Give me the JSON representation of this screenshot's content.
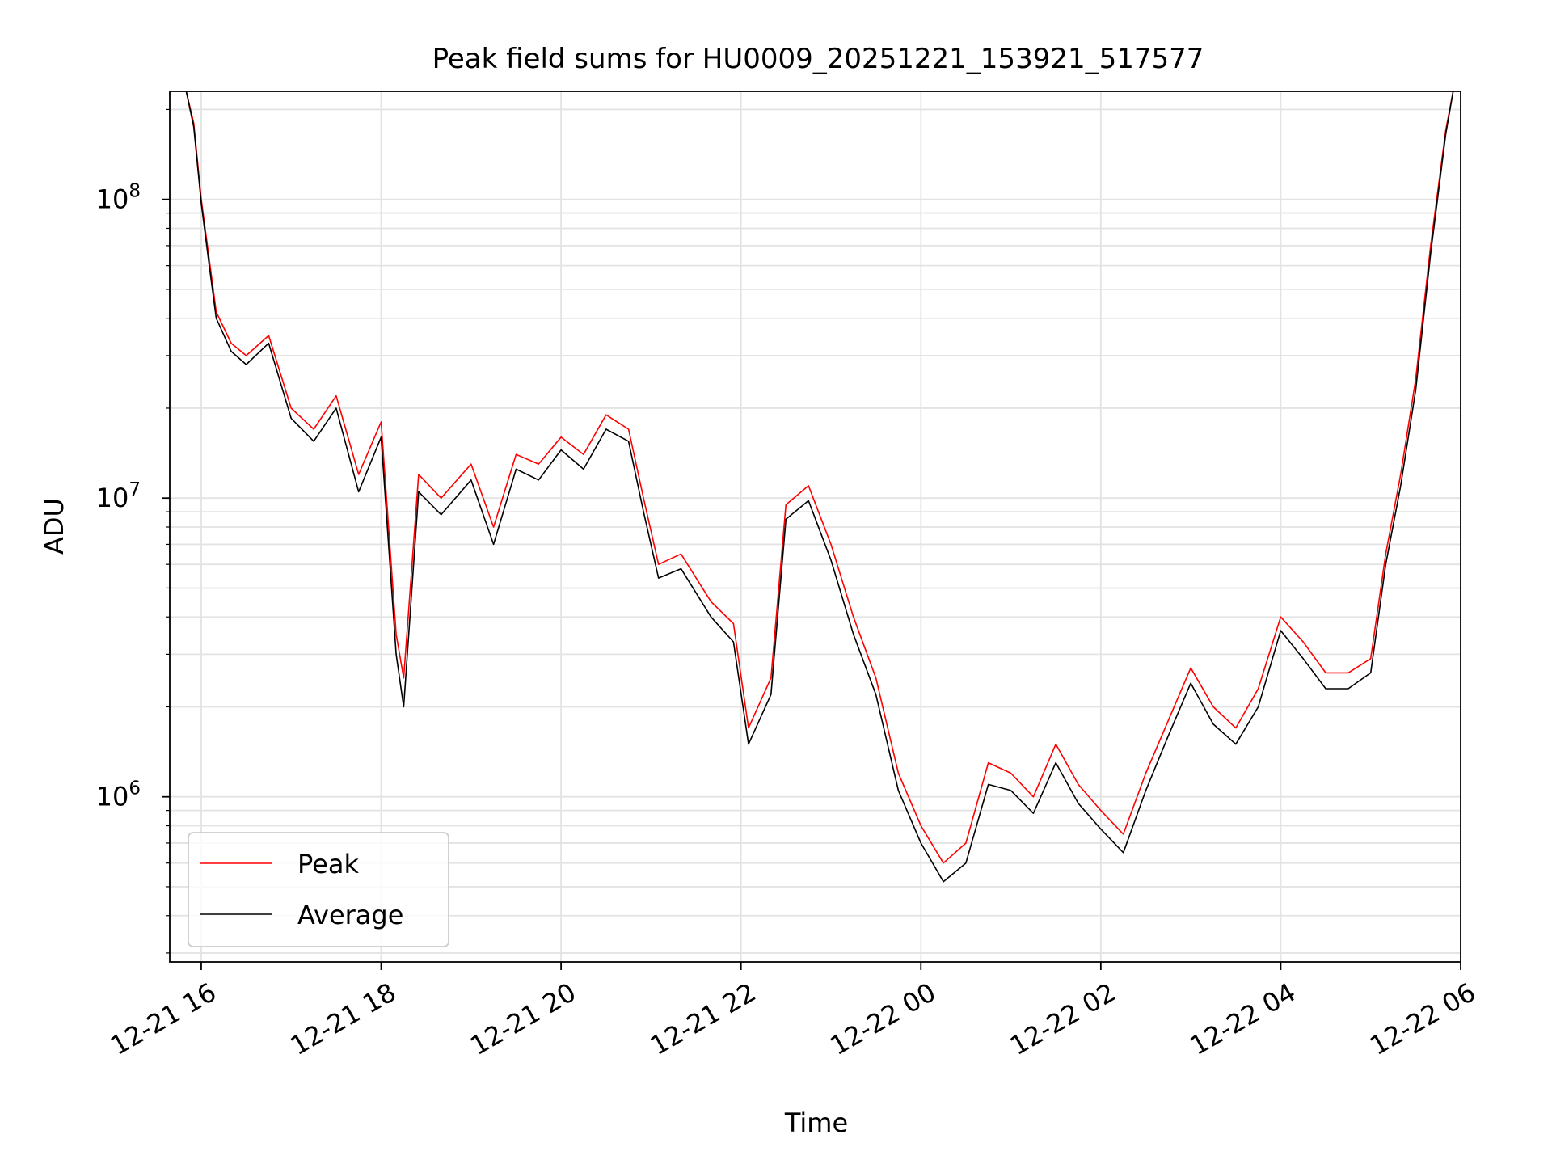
{
  "chart_data": {
    "type": "line",
    "title": "Peak field sums for HU0009_20251221_153921_517577",
    "xlabel": "Time",
    "ylabel": "ADU",
    "x_tick_labels": [
      "12-21 16",
      "12-21 18",
      "12-21 20",
      "12-21 22",
      "12-22 00",
      "12-22 02",
      "12-22 04",
      "12-22 06"
    ],
    "x_tick_values": [
      "2025-12-21 16:00",
      "2025-12-21 18:00",
      "2025-12-21 20:00",
      "2025-12-21 22:00",
      "2025-12-22 00:00",
      "2025-12-22 02:00",
      "2025-12-22 04:00",
      "2025-12-22 06:00"
    ],
    "xlim": [
      "2025-12-21 15:39",
      "2025-12-22 06:00"
    ],
    "y_scale": "log",
    "ylim": [
      280000,
      230000000
    ],
    "y_tick_labels": [
      {
        "base": "10",
        "exp": "6",
        "value": 1000000
      },
      {
        "base": "10",
        "exp": "7",
        "value": 10000000
      },
      {
        "base": "10",
        "exp": "8",
        "value": 100000000
      }
    ],
    "grid": true,
    "legend_position": "lower left",
    "series": [
      {
        "name": "Peak",
        "color": "#ff0000",
        "points": [
          [
            "2025-12-21 15:50",
            230000000
          ],
          [
            "2025-12-21 15:55",
            180000000
          ],
          [
            "2025-12-21 16:00",
            100000000
          ],
          [
            "2025-12-21 16:05",
            65000000
          ],
          [
            "2025-12-21 16:10",
            42000000
          ],
          [
            "2025-12-21 16:20",
            33000000
          ],
          [
            "2025-12-21 16:30",
            30000000
          ],
          [
            "2025-12-21 16:45",
            35000000
          ],
          [
            "2025-12-21 17:00",
            20000000
          ],
          [
            "2025-12-21 17:15",
            17000000
          ],
          [
            "2025-12-21 17:30",
            22000000
          ],
          [
            "2025-12-21 17:45",
            12000000
          ],
          [
            "2025-12-21 18:00",
            18000000
          ],
          [
            "2025-12-21 18:10",
            3500000
          ],
          [
            "2025-12-21 18:15",
            2500000
          ],
          [
            "2025-12-21 18:25",
            12000000
          ],
          [
            "2025-12-21 18:40",
            10000000
          ],
          [
            "2025-12-21 19:00",
            13000000
          ],
          [
            "2025-12-21 19:15",
            8000000
          ],
          [
            "2025-12-21 19:30",
            14000000
          ],
          [
            "2025-12-21 19:45",
            13000000
          ],
          [
            "2025-12-21 20:00",
            16000000
          ],
          [
            "2025-12-21 20:15",
            14000000
          ],
          [
            "2025-12-21 20:30",
            19000000
          ],
          [
            "2025-12-21 20:45",
            17000000
          ],
          [
            "2025-12-21 20:55",
            10000000
          ],
          [
            "2025-12-21 21:05",
            6000000
          ],
          [
            "2025-12-21 21:20",
            6500000
          ],
          [
            "2025-12-21 21:40",
            4500000
          ],
          [
            "2025-12-21 21:55",
            3800000
          ],
          [
            "2025-12-21 22:05",
            1700000
          ],
          [
            "2025-12-21 22:20",
            2500000
          ],
          [
            "2025-12-21 22:30",
            9500000
          ],
          [
            "2025-12-21 22:45",
            11000000
          ],
          [
            "2025-12-21 23:00",
            7000000
          ],
          [
            "2025-12-21 23:15",
            4000000
          ],
          [
            "2025-12-21 23:30",
            2500000
          ],
          [
            "2025-12-21 23:45",
            1200000
          ],
          [
            "2025-12-22 00:00",
            800000
          ],
          [
            "2025-12-22 00:15",
            600000
          ],
          [
            "2025-12-22 00:30",
            700000
          ],
          [
            "2025-12-22 00:45",
            1300000
          ],
          [
            "2025-12-22 01:00",
            1200000
          ],
          [
            "2025-12-22 01:15",
            1000000
          ],
          [
            "2025-12-22 01:30",
            1500000
          ],
          [
            "2025-12-22 01:45",
            1100000
          ],
          [
            "2025-12-22 02:00",
            900000
          ],
          [
            "2025-12-22 02:15",
            750000
          ],
          [
            "2025-12-22 02:30",
            1200000
          ],
          [
            "2025-12-22 02:45",
            1800000
          ],
          [
            "2025-12-22 03:00",
            2700000
          ],
          [
            "2025-12-22 03:15",
            2000000
          ],
          [
            "2025-12-22 03:30",
            1700000
          ],
          [
            "2025-12-22 03:45",
            2300000
          ],
          [
            "2025-12-22 04:00",
            4000000
          ],
          [
            "2025-12-22 04:15",
            3300000
          ],
          [
            "2025-12-22 04:30",
            2600000
          ],
          [
            "2025-12-22 04:45",
            2600000
          ],
          [
            "2025-12-22 05:00",
            2900000
          ],
          [
            "2025-12-22 05:10",
            6500000
          ],
          [
            "2025-12-22 05:20",
            12000000
          ],
          [
            "2025-12-22 05:30",
            25000000
          ],
          [
            "2025-12-22 05:40",
            70000000
          ],
          [
            "2025-12-22 05:50",
            170000000
          ],
          [
            "2025-12-22 05:55",
            230000000
          ]
        ]
      },
      {
        "name": "Average",
        "color": "#000000",
        "points": [
          [
            "2025-12-21 15:50",
            230000000
          ],
          [
            "2025-12-21 15:55",
            175000000
          ],
          [
            "2025-12-21 16:00",
            97000000
          ],
          [
            "2025-12-21 16:05",
            62000000
          ],
          [
            "2025-12-21 16:10",
            40000000
          ],
          [
            "2025-12-21 16:20",
            31000000
          ],
          [
            "2025-12-21 16:30",
            28000000
          ],
          [
            "2025-12-21 16:45",
            33000000
          ],
          [
            "2025-12-21 17:00",
            18500000
          ],
          [
            "2025-12-21 17:15",
            15500000
          ],
          [
            "2025-12-21 17:30",
            20000000
          ],
          [
            "2025-12-21 17:45",
            10500000
          ],
          [
            "2025-12-21 18:00",
            16000000
          ],
          [
            "2025-12-21 18:10",
            3000000
          ],
          [
            "2025-12-21 18:15",
            2000000
          ],
          [
            "2025-12-21 18:25",
            10500000
          ],
          [
            "2025-12-21 18:40",
            8800000
          ],
          [
            "2025-12-21 19:00",
            11500000
          ],
          [
            "2025-12-21 19:15",
            7000000
          ],
          [
            "2025-12-21 19:30",
            12500000
          ],
          [
            "2025-12-21 19:45",
            11500000
          ],
          [
            "2025-12-21 20:00",
            14500000
          ],
          [
            "2025-12-21 20:15",
            12500000
          ],
          [
            "2025-12-21 20:30",
            17000000
          ],
          [
            "2025-12-21 20:45",
            15500000
          ],
          [
            "2025-12-21 20:55",
            9000000
          ],
          [
            "2025-12-21 21:05",
            5400000
          ],
          [
            "2025-12-21 21:20",
            5800000
          ],
          [
            "2025-12-21 21:40",
            4000000
          ],
          [
            "2025-12-21 21:55",
            3300000
          ],
          [
            "2025-12-21 22:05",
            1500000
          ],
          [
            "2025-12-21 22:20",
            2200000
          ],
          [
            "2025-12-21 22:30",
            8500000
          ],
          [
            "2025-12-21 22:45",
            9800000
          ],
          [
            "2025-12-21 23:00",
            6200000
          ],
          [
            "2025-12-21 23:15",
            3500000
          ],
          [
            "2025-12-21 23:30",
            2200000
          ],
          [
            "2025-12-21 23:45",
            1050000
          ],
          [
            "2025-12-22 00:00",
            700000
          ],
          [
            "2025-12-22 00:15",
            520000
          ],
          [
            "2025-12-22 00:30",
            600000
          ],
          [
            "2025-12-22 00:45",
            1100000
          ],
          [
            "2025-12-22 01:00",
            1050000
          ],
          [
            "2025-12-22 01:15",
            880000
          ],
          [
            "2025-12-22 01:30",
            1300000
          ],
          [
            "2025-12-22 01:45",
            950000
          ],
          [
            "2025-12-22 02:00",
            780000
          ],
          [
            "2025-12-22 02:15",
            650000
          ],
          [
            "2025-12-22 02:30",
            1050000
          ],
          [
            "2025-12-22 02:45",
            1600000
          ],
          [
            "2025-12-22 03:00",
            2400000
          ],
          [
            "2025-12-22 03:15",
            1750000
          ],
          [
            "2025-12-22 03:30",
            1500000
          ],
          [
            "2025-12-22 03:45",
            2000000
          ],
          [
            "2025-12-22 04:00",
            3600000
          ],
          [
            "2025-12-22 04:15",
            2900000
          ],
          [
            "2025-12-22 04:30",
            2300000
          ],
          [
            "2025-12-22 04:45",
            2300000
          ],
          [
            "2025-12-22 05:00",
            2600000
          ],
          [
            "2025-12-22 05:10",
            6000000
          ],
          [
            "2025-12-22 05:20",
            11000000
          ],
          [
            "2025-12-22 05:30",
            23000000
          ],
          [
            "2025-12-22 05:40",
            66000000
          ],
          [
            "2025-12-22 05:50",
            165000000
          ],
          [
            "2025-12-22 05:55",
            230000000
          ]
        ]
      }
    ]
  }
}
